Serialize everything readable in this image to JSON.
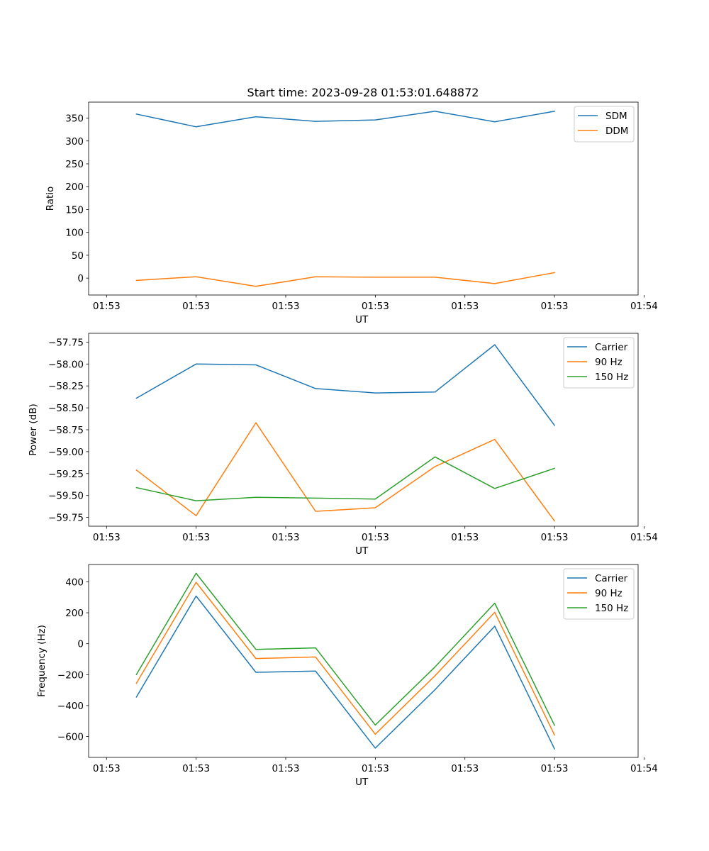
{
  "figure_title": "Start time: 2023-09-28 01:53:01.648872",
  "chart_data": [
    {
      "type": "line",
      "title": "Start time: 2023-09-28 01:53:01.648872",
      "xlabel": "UT",
      "ylabel": "Ratio",
      "x": [
        1,
        2,
        3,
        4,
        5,
        6,
        7,
        8
      ],
      "xlim": [
        0.2,
        9.4
      ],
      "ylim": [
        -37,
        385
      ],
      "xticks": [
        0.5,
        2.0,
        3.5,
        5.0,
        6.5,
        8.0,
        9.5
      ],
      "xtick_labels": [
        "01:53",
        "01:53",
        "01:53",
        "01:53",
        "01:53",
        "01:53",
        "01:54"
      ],
      "yticks": [
        0,
        50,
        100,
        150,
        200,
        250,
        300,
        350
      ],
      "ytick_labels": [
        "0",
        "50",
        "100",
        "150",
        "200",
        "250",
        "300",
        "350"
      ],
      "series": [
        {
          "name": "SDM",
          "color": "#1f77b4",
          "values": [
            359,
            331,
            353,
            343,
            346,
            365,
            342,
            365
          ]
        },
        {
          "name": "DDM",
          "color": "#ff7f0e",
          "values": [
            -5,
            3,
            -18,
            3,
            2,
            2,
            -12,
            12
          ]
        }
      ],
      "legend": "top-right"
    },
    {
      "type": "line",
      "title": "",
      "xlabel": "UT",
      "ylabel": "Power (dB)",
      "x": [
        1,
        2,
        3,
        4,
        5,
        6,
        7,
        8
      ],
      "xlim": [
        0.2,
        9.4
      ],
      "ylim": [
        -59.85,
        -57.65
      ],
      "xticks": [
        0.5,
        2.0,
        3.5,
        5.0,
        6.5,
        8.0,
        9.5
      ],
      "xtick_labels": [
        "01:53",
        "01:53",
        "01:53",
        "01:53",
        "01:53",
        "01:53",
        "01:54"
      ],
      "yticks": [
        -57.75,
        -58.0,
        -58.25,
        -58.5,
        -58.75,
        -59.0,
        -59.25,
        -59.5,
        -59.75
      ],
      "ytick_labels": [
        "−57.75",
        "−58.00",
        "−58.25",
        "−58.50",
        "−58.75",
        "−59.00",
        "−59.25",
        "−59.50",
        "−59.75"
      ],
      "series": [
        {
          "name": "Carrier",
          "color": "#1f77b4",
          "values": [
            -58.39,
            -58.0,
            -58.01,
            -58.28,
            -58.33,
            -58.32,
            -57.78,
            -58.7
          ]
        },
        {
          "name": "90 Hz",
          "color": "#ff7f0e",
          "values": [
            -59.21,
            -59.73,
            -58.67,
            -59.68,
            -59.64,
            -59.17,
            -58.86,
            -59.79
          ]
        },
        {
          "name": "150 Hz",
          "color": "#2ca02c",
          "values": [
            -59.41,
            -59.56,
            -59.52,
            -59.53,
            -59.54,
            -59.06,
            -59.42,
            -59.19
          ]
        }
      ],
      "legend": "top-right"
    },
    {
      "type": "line",
      "title": "",
      "xlabel": "UT",
      "ylabel": "Frequency (Hz)",
      "x": [
        1,
        2,
        3,
        4,
        5,
        6,
        7,
        8
      ],
      "xlim": [
        0.2,
        9.4
      ],
      "ylim": [
        -735,
        512
      ],
      "xticks": [
        0.5,
        2.0,
        3.5,
        5.0,
        6.5,
        8.0,
        9.5
      ],
      "xtick_labels": [
        "01:53",
        "01:53",
        "01:53",
        "01:53",
        "01:53",
        "01:53",
        "01:54"
      ],
      "yticks": [
        -600,
        -400,
        -200,
        0,
        200,
        400
      ],
      "ytick_labels": [
        "−600",
        "−400",
        "−200",
        "0",
        "200",
        "400"
      ],
      "series": [
        {
          "name": "Carrier",
          "color": "#1f77b4",
          "values": [
            -345,
            308,
            -185,
            -177,
            -675,
            -297,
            113,
            -680
          ]
        },
        {
          "name": "90 Hz",
          "color": "#ff7f0e",
          "values": [
            -256,
            397,
            -96,
            -86,
            -585,
            -207,
            203,
            -590
          ]
        },
        {
          "name": "150 Hz",
          "color": "#2ca02c",
          "values": [
            -199,
            455,
            -37,
            -27,
            -526,
            -150,
            262,
            -528
          ]
        }
      ],
      "legend": "top-right"
    }
  ]
}
